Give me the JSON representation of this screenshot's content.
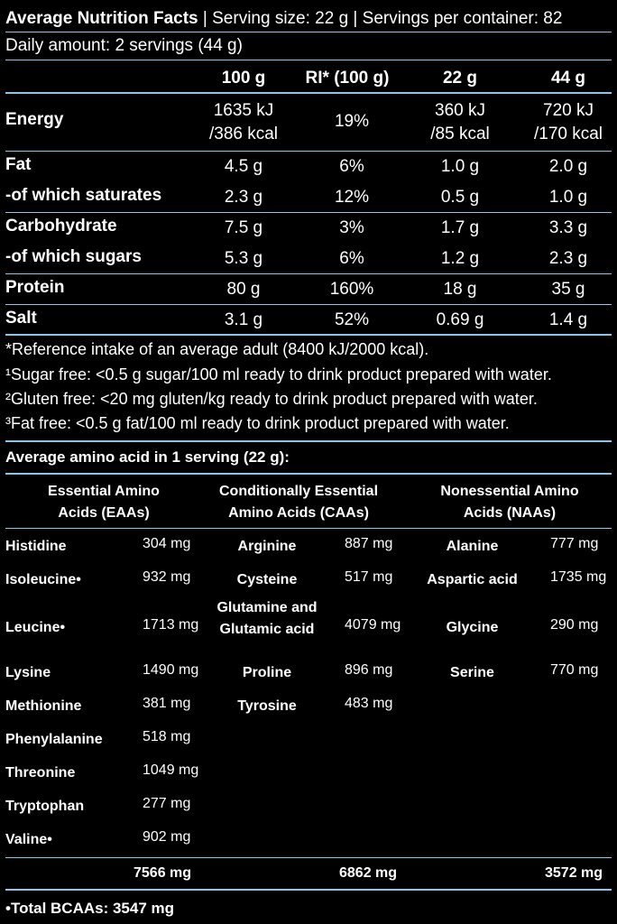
{
  "header": {
    "title": "Average Nutrition Facts",
    "serving": "| Serving size: 22 g | Servings per container: 82",
    "daily": "Daily amount: 2 servings (44 g)"
  },
  "nutrition": {
    "columns": [
      "100 g",
      "RI* (100 g)",
      "22 g",
      "44 g"
    ],
    "rows": [
      {
        "label": "Energy",
        "values": [
          "1635 kJ\n/386 kcal",
          "19%",
          "360 kJ\n/85 kcal",
          "720 kJ\n/170 kcal"
        ]
      },
      {
        "label": "Fat",
        "values": [
          "4.5 g",
          "6%",
          "1.0 g",
          "2.0 g"
        ]
      },
      {
        "label": "-of which saturates",
        "values": [
          "2.3 g",
          "12%",
          "0.5 g",
          "1.0 g"
        ]
      },
      {
        "label": "Carbohydrate",
        "values": [
          "7.5 g",
          "3%",
          "1.7 g",
          "3.3 g"
        ]
      },
      {
        "label": "-of which sugars",
        "values": [
          "5.3 g",
          "6%",
          "1.2 g",
          "2.3 g"
        ]
      },
      {
        "label": "Protein",
        "values": [
          "80 g",
          "160%",
          "18 g",
          "35 g"
        ]
      },
      {
        "label": "Salt",
        "values": [
          "3.1 g",
          "52%",
          "0.69 g",
          "1.4 g"
        ]
      }
    ]
  },
  "notes": [
    "*Reference intake of an average adult (8400 kJ/2000 kcal).",
    "¹Sugar free: <0.5 g sugar/100 ml ready to drink product prepared with water.",
    "²Gluten free: <20 mg gluten/kg ready to drink product prepared with water.",
    "³Fat free: <0.5 g fat/100 ml ready to drink product prepared with water."
  ],
  "amino": {
    "title": "Average amino acid in 1 serving (22 g):",
    "groups": [
      {
        "name": "Essential Amino\nAcids (EAAs)",
        "total": "7566 mg",
        "items": [
          [
            "Histidine",
            "304 mg"
          ],
          [
            "Isoleucine•",
            "932 mg"
          ],
          [
            "Leucine•",
            "1713 mg"
          ],
          [
            "Lysine",
            "1490 mg"
          ],
          [
            "Methionine",
            "381 mg"
          ],
          [
            "Phenylalanine",
            "518 mg"
          ],
          [
            "Threonine",
            "1049 mg"
          ],
          [
            "Tryptophan",
            "277 mg"
          ],
          [
            "Valine•",
            "902 mg"
          ]
        ]
      },
      {
        "name": "Conditionally Essential\nAmino Acids (CAAs)",
        "total": "6862 mg",
        "items": [
          [
            "Arginine",
            "887 mg"
          ],
          [
            "Cysteine",
            "517 mg"
          ],
          [
            "Glutamine and\nGlutamic acid",
            "4079 mg"
          ],
          [
            "Proline",
            "896 mg"
          ],
          [
            "Tyrosine",
            "483 mg"
          ]
        ]
      },
      {
        "name": "Nonessential Amino\nAcids (NAAs)",
        "total": "3572 mg",
        "items": [
          [
            "Alanine",
            "777 mg"
          ],
          [
            "Aspartic acid",
            "1735 mg"
          ],
          [
            "Glycine",
            "290 mg"
          ],
          [
            "Serine",
            "770 mg"
          ]
        ]
      }
    ],
    "bcaa": "•Total BCAAs: 3547 mg"
  },
  "colors": {
    "background": "#000000",
    "text": "#ffffff",
    "rule": "#8dc6e8"
  }
}
